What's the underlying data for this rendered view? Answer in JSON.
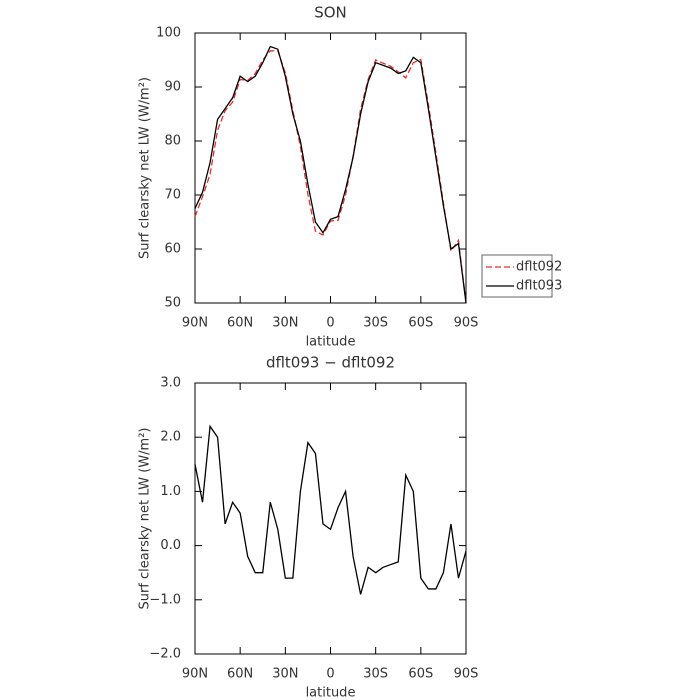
{
  "chart_data": [
    {
      "type": "line",
      "title": "SON",
      "xlabel": "latitude",
      "ylabel": "Surf clearsky net LW (W/m²)",
      "x": [
        90,
        85,
        80,
        75,
        70,
        65,
        60,
        55,
        50,
        45,
        40,
        35,
        30,
        25,
        20,
        15,
        10,
        5,
        0,
        -5,
        -10,
        -15,
        -20,
        -25,
        -30,
        -35,
        -40,
        -45,
        -50,
        -55,
        -60,
        -65,
        -70,
        -75,
        -80,
        -85,
        -90
      ],
      "series": [
        {
          "name": "dflt092",
          "color": "#e03030",
          "line_style": "dashed",
          "values": [
            66.0,
            69.7,
            73.8,
            82.0,
            85.6,
            87.2,
            91.4,
            91.2,
            92.5,
            95.0,
            96.7,
            96.7,
            92.6,
            85.6,
            79.0,
            70.1,
            63.3,
            62.6,
            65.2,
            65.3,
            70.0,
            77.2,
            85.9,
            91.4,
            95.0,
            94.4,
            93.85,
            92.8,
            91.7,
            94.5,
            95.1,
            86.8,
            77.8,
            68.5,
            59.6,
            61.6,
            50.1
          ]
        },
        {
          "name": "dflt093",
          "color": "#000000",
          "line_style": "solid",
          "values": [
            67.5,
            70.5,
            76,
            84,
            86,
            88,
            92,
            91,
            92,
            94.5,
            97.5,
            97,
            92,
            85,
            80,
            72,
            65,
            63,
            65.5,
            66,
            71,
            77,
            85,
            91,
            94.5,
            94,
            93.5,
            92.5,
            93,
            95.5,
            94.5,
            86,
            77,
            68,
            60,
            61,
            50
          ]
        }
      ],
      "xlim": [
        90,
        -90
      ],
      "xticks": [
        {
          "value": 90,
          "label": "90N"
        },
        {
          "value": 60,
          "label": "60N"
        },
        {
          "value": 30,
          "label": "30N"
        },
        0,
        {
          "value": -30,
          "label": "30S"
        },
        {
          "value": -60,
          "label": "60S"
        },
        {
          "value": -90,
          "label": "90S"
        }
      ],
      "ylim": [
        50,
        100
      ],
      "yticks": [
        50,
        60,
        70,
        80,
        90,
        100
      ],
      "legend": "right"
    },
    {
      "type": "line",
      "title": "dflt093 − dflt092",
      "xlabel": "latitude",
      "ylabel": "Surf clearsky net LW (W/m²)",
      "x": [
        90,
        85,
        80,
        75,
        70,
        65,
        60,
        55,
        50,
        45,
        40,
        35,
        30,
        25,
        20,
        15,
        10,
        5,
        0,
        -5,
        -10,
        -15,
        -20,
        -25,
        -30,
        -35,
        -40,
        -45,
        -50,
        -55,
        -60,
        -65,
        -70,
        -75,
        -80,
        -85,
        -90
      ],
      "series": [
        {
          "color": "#000000",
          "line_style": "solid",
          "values": [
            1.5,
            0.8,
            2.2,
            2.0,
            0.4,
            0.8,
            0.6,
            -0.2,
            -0.5,
            -0.5,
            0.8,
            0.3,
            -0.6,
            -0.6,
            1.0,
            1.9,
            1.7,
            0.4,
            0.3,
            0.7,
            1.0,
            -0.2,
            -0.9,
            -0.4,
            -0.5,
            -0.4,
            -0.35,
            -0.3,
            1.3,
            1.0,
            -0.6,
            -0.8,
            -0.8,
            -0.5,
            0.4,
            -0.6,
            -0.1
          ]
        }
      ],
      "xlim": [
        90,
        -90
      ],
      "xticks": [
        {
          "value": 90,
          "label": "90N"
        },
        {
          "value": 60,
          "label": "60N"
        },
        {
          "value": 30,
          "label": "30N"
        },
        0,
        {
          "value": -30,
          "label": "30S"
        },
        {
          "value": -60,
          "label": "60S"
        },
        {
          "value": -90,
          "label": "90S"
        }
      ],
      "ylim": [
        -2,
        3
      ],
      "yticks": [
        {
          "value": -2,
          "label": "−2.0"
        },
        {
          "value": -1,
          "label": "−1.0"
        },
        {
          "value": 0,
          "label": "0.0"
        },
        {
          "value": 1,
          "label": "1.0"
        },
        {
          "value": 2,
          "label": "2.0"
        },
        {
          "value": 3,
          "label": "3.0"
        }
      ]
    }
  ]
}
